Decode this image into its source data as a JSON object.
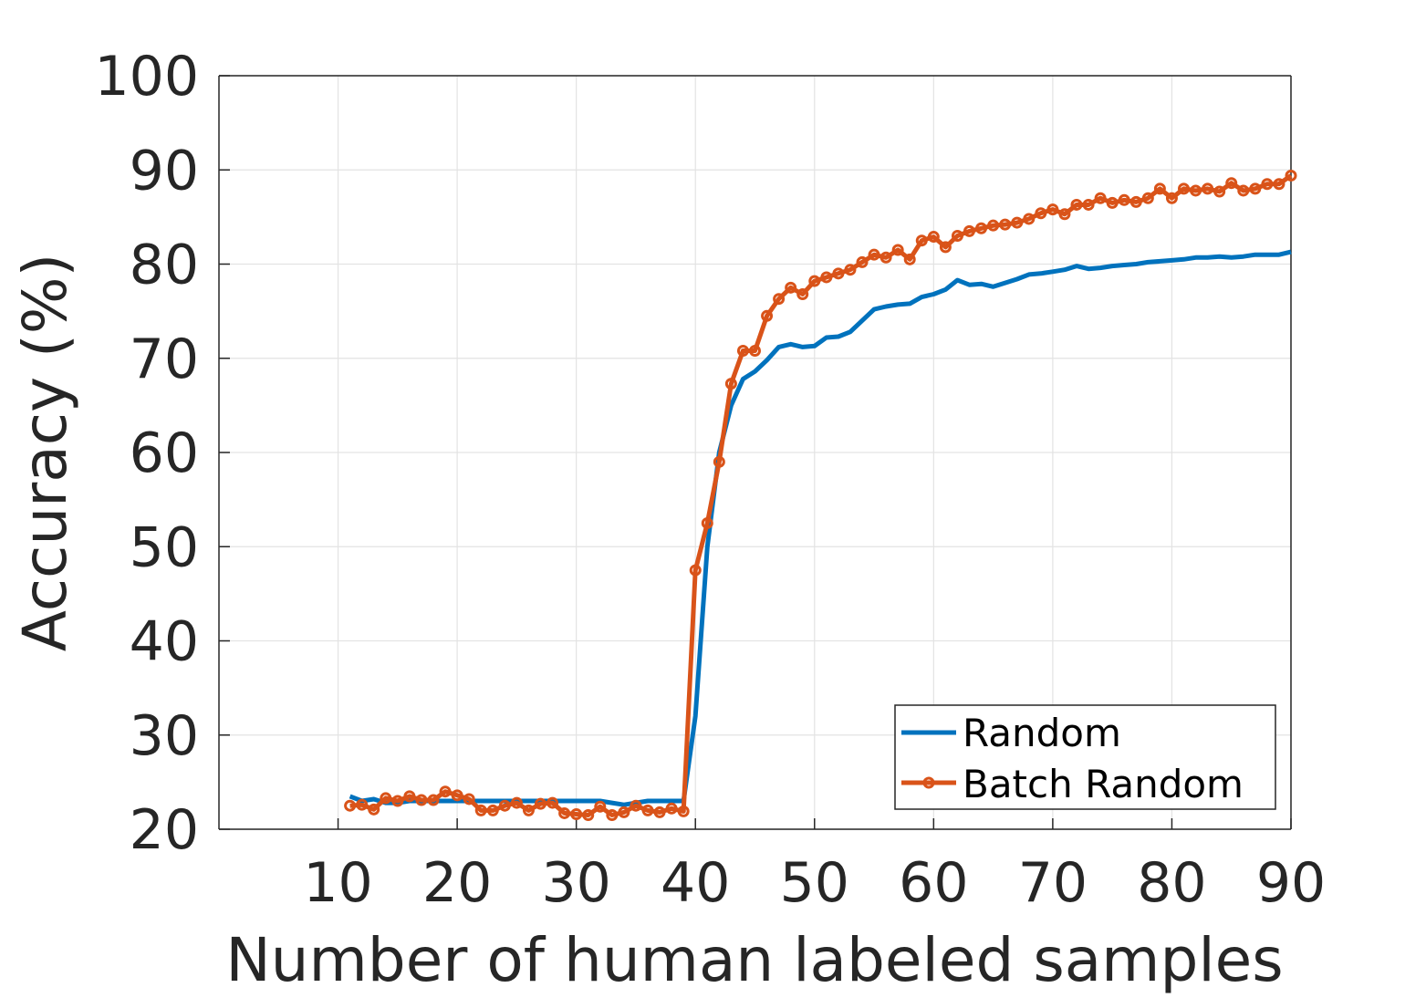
{
  "chart_data": {
    "type": "line",
    "xlabel": "Number of human labeled samples",
    "ylabel": "Accuracy (%)",
    "xlim": [
      0,
      90
    ],
    "ylim": [
      20,
      100
    ],
    "xticks": [
      10,
      20,
      30,
      40,
      50,
      60,
      70,
      80,
      90
    ],
    "yticks": [
      20,
      30,
      40,
      50,
      60,
      70,
      80,
      90,
      100
    ],
    "grid": true,
    "legend_position": "bottom-right",
    "series": [
      {
        "name": "Random",
        "color": "#0072BD",
        "marker": "none",
        "x": [
          11,
          12,
          13,
          14,
          15,
          16,
          17,
          18,
          19,
          20,
          21,
          22,
          23,
          24,
          25,
          26,
          27,
          28,
          29,
          30,
          31,
          32,
          33,
          34,
          35,
          36,
          37,
          38,
          39,
          40,
          41,
          42,
          43,
          44,
          45,
          46,
          47,
          48,
          49,
          50,
          51,
          52,
          53,
          54,
          55,
          56,
          57,
          58,
          59,
          60,
          61,
          62,
          63,
          64,
          65,
          66,
          67,
          68,
          69,
          70,
          71,
          72,
          73,
          74,
          75,
          76,
          77,
          78,
          79,
          80,
          81,
          82,
          83,
          84,
          85,
          86,
          87,
          88,
          89,
          90
        ],
        "y": [
          23.5,
          23.0,
          23.2,
          22.8,
          22.8,
          23.0,
          23.0,
          23.0,
          23.0,
          23.0,
          23.0,
          23.0,
          23.0,
          23.0,
          23.0,
          23.0,
          23.0,
          23.0,
          23.0,
          23.0,
          23.0,
          23.0,
          22.8,
          22.6,
          22.8,
          23.0,
          23.0,
          23.0,
          23.0,
          32.0,
          50.0,
          60.0,
          65.0,
          67.8,
          68.6,
          69.8,
          71.2,
          71.5,
          71.2,
          71.3,
          72.2,
          72.3,
          72.8,
          74.0,
          75.2,
          75.5,
          75.7,
          75.8,
          76.5,
          76.8,
          77.3,
          78.3,
          77.8,
          77.9,
          77.6,
          78.0,
          78.4,
          78.9,
          79.0,
          79.2,
          79.4,
          79.8,
          79.5,
          79.6,
          79.8,
          79.9,
          80.0,
          80.2,
          80.3,
          80.4,
          80.5,
          80.7,
          80.7,
          80.8,
          80.7,
          80.8,
          81.0,
          81.0,
          81.0,
          81.3
        ]
      },
      {
        "name": "Batch Random",
        "color": "#D95319",
        "marker": "circle",
        "x": [
          11,
          12,
          13,
          14,
          15,
          16,
          17,
          18,
          19,
          20,
          21,
          22,
          23,
          24,
          25,
          26,
          27,
          28,
          29,
          30,
          31,
          32,
          33,
          34,
          35,
          36,
          37,
          38,
          39,
          40,
          41,
          42,
          43,
          44,
          45,
          46,
          47,
          48,
          49,
          50,
          51,
          52,
          53,
          54,
          55,
          56,
          57,
          58,
          59,
          60,
          61,
          62,
          63,
          64,
          65,
          66,
          67,
          68,
          69,
          70,
          71,
          72,
          73,
          74,
          75,
          76,
          77,
          78,
          79,
          80,
          81,
          82,
          83,
          84,
          85,
          86,
          87,
          88,
          89,
          90
        ],
        "y": [
          22.5,
          22.6,
          22.1,
          23.3,
          23.0,
          23.5,
          23.1,
          23.1,
          24.0,
          23.6,
          23.2,
          22.0,
          22.0,
          22.5,
          22.8,
          22.0,
          22.7,
          22.8,
          21.7,
          21.6,
          21.5,
          22.4,
          21.5,
          21.8,
          22.5,
          22.0,
          21.8,
          22.2,
          21.9,
          47.5,
          52.5,
          59.0,
          67.3,
          70.8,
          70.8,
          74.5,
          76.3,
          77.5,
          76.8,
          78.2,
          78.6,
          79.0,
          79.4,
          80.2,
          81.0,
          80.7,
          81.5,
          80.5,
          82.5,
          82.9,
          81.8,
          83.0,
          83.5,
          83.8,
          84.1,
          84.2,
          84.4,
          84.8,
          85.4,
          85.8,
          85.3,
          86.3,
          86.3,
          87.0,
          86.5,
          86.8,
          86.6,
          87.0,
          88.0,
          87.0,
          88.0,
          87.8,
          88.0,
          87.7,
          88.6,
          87.8,
          88.0,
          88.5,
          88.5,
          89.4
        ]
      }
    ]
  }
}
